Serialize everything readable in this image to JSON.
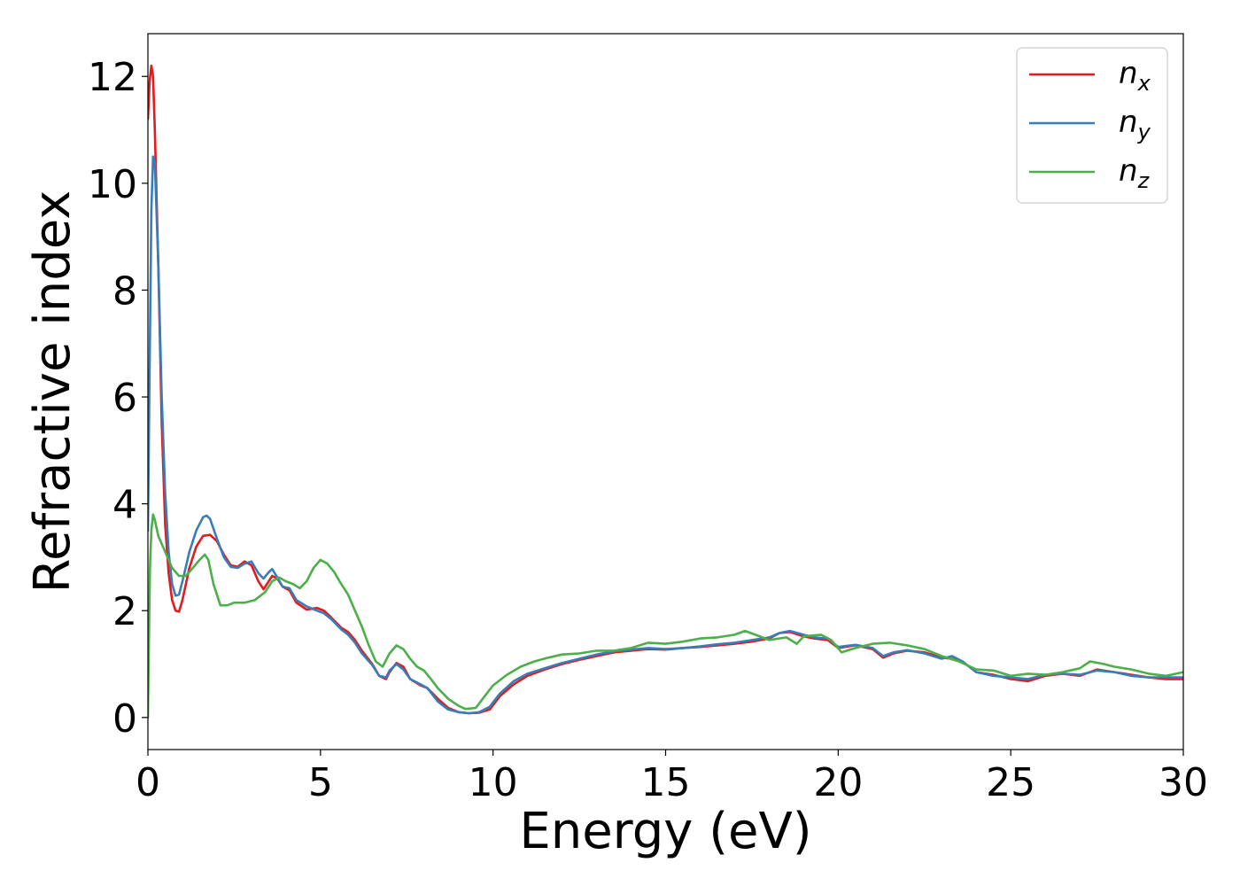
{
  "chart_data": {
    "type": "line",
    "xlabel": "Energy (eV)",
    "ylabel": "Refractive index",
    "xlim": [
      0,
      30
    ],
    "ylim": [
      -0.6,
      12.8
    ],
    "xticks": [
      "0",
      "5",
      "10",
      "15",
      "20",
      "25",
      "30"
    ],
    "yticks": [
      "0",
      "2",
      "4",
      "6",
      "8",
      "10",
      "12"
    ],
    "grid": false,
    "legend_position": "top-right",
    "series": [
      {
        "name": "n",
        "subscript": "x",
        "color": "#e41a1c",
        "points": [
          [
            0,
            11.2
          ],
          [
            0.05,
            11.9
          ],
          [
            0.1,
            12.2
          ],
          [
            0.15,
            12.0
          ],
          [
            0.2,
            11.0
          ],
          [
            0.3,
            8.5
          ],
          [
            0.4,
            5.5
          ],
          [
            0.5,
            3.6
          ],
          [
            0.6,
            2.7
          ],
          [
            0.7,
            2.2
          ],
          [
            0.8,
            2.0
          ],
          [
            0.9,
            1.98
          ],
          [
            1.0,
            2.2
          ],
          [
            1.2,
            2.8
          ],
          [
            1.4,
            3.2
          ],
          [
            1.6,
            3.4
          ],
          [
            1.8,
            3.42
          ],
          [
            2.0,
            3.3
          ],
          [
            2.2,
            3.05
          ],
          [
            2.4,
            2.85
          ],
          [
            2.6,
            2.82
          ],
          [
            2.8,
            2.92
          ],
          [
            3.0,
            2.85
          ],
          [
            3.2,
            2.55
          ],
          [
            3.35,
            2.4
          ],
          [
            3.5,
            2.55
          ],
          [
            3.6,
            2.65
          ],
          [
            3.75,
            2.6
          ],
          [
            3.9,
            2.45
          ],
          [
            4.1,
            2.38
          ],
          [
            4.3,
            2.15
          ],
          [
            4.6,
            2.02
          ],
          [
            4.9,
            2.05
          ],
          [
            5.1,
            2.0
          ],
          [
            5.3,
            1.88
          ],
          [
            5.6,
            1.68
          ],
          [
            5.8,
            1.6
          ],
          [
            6.0,
            1.45
          ],
          [
            6.2,
            1.25
          ],
          [
            6.5,
            1.0
          ],
          [
            6.7,
            0.78
          ],
          [
            6.9,
            0.72
          ],
          [
            7.0,
            0.85
          ],
          [
            7.2,
            1.02
          ],
          [
            7.4,
            0.95
          ],
          [
            7.6,
            0.72
          ],
          [
            7.9,
            0.6
          ],
          [
            8.1,
            0.55
          ],
          [
            8.4,
            0.35
          ],
          [
            8.7,
            0.18
          ],
          [
            9.0,
            0.1
          ],
          [
            9.3,
            0.08
          ],
          [
            9.6,
            0.09
          ],
          [
            9.9,
            0.15
          ],
          [
            10.2,
            0.4
          ],
          [
            10.6,
            0.62
          ],
          [
            11.0,
            0.78
          ],
          [
            11.5,
            0.9
          ],
          [
            12.0,
            1.0
          ],
          [
            12.5,
            1.08
          ],
          [
            13.0,
            1.15
          ],
          [
            13.5,
            1.22
          ],
          [
            14.0,
            1.25
          ],
          [
            14.5,
            1.28
          ],
          [
            15.0,
            1.27
          ],
          [
            15.5,
            1.3
          ],
          [
            16.0,
            1.32
          ],
          [
            16.5,
            1.35
          ],
          [
            17.0,
            1.38
          ],
          [
            17.5,
            1.42
          ],
          [
            18.0,
            1.48
          ],
          [
            18.3,
            1.58
          ],
          [
            18.6,
            1.6
          ],
          [
            19.0,
            1.52
          ],
          [
            19.3,
            1.48
          ],
          [
            19.7,
            1.45
          ],
          [
            20.0,
            1.3
          ],
          [
            20.5,
            1.35
          ],
          [
            21.0,
            1.28
          ],
          [
            21.3,
            1.12
          ],
          [
            21.6,
            1.2
          ],
          [
            22.0,
            1.25
          ],
          [
            22.5,
            1.22
          ],
          [
            23.0,
            1.12
          ],
          [
            23.3,
            1.1
          ],
          [
            23.6,
            1.05
          ],
          [
            24.0,
            0.85
          ],
          [
            24.5,
            0.8
          ],
          [
            25.0,
            0.72
          ],
          [
            25.5,
            0.68
          ],
          [
            26.0,
            0.78
          ],
          [
            26.5,
            0.82
          ],
          [
            27.0,
            0.78
          ],
          [
            27.5,
            0.9
          ],
          [
            28.0,
            0.85
          ],
          [
            28.5,
            0.8
          ],
          [
            29.0,
            0.75
          ],
          [
            29.5,
            0.72
          ],
          [
            30.0,
            0.72
          ]
        ]
      },
      {
        "name": "n",
        "subscript": "y",
        "color": "#377eb8",
        "points": [
          [
            0,
            3.5
          ],
          [
            0.05,
            6.5
          ],
          [
            0.1,
            9.5
          ],
          [
            0.15,
            10.5
          ],
          [
            0.2,
            10.4
          ],
          [
            0.3,
            8.5
          ],
          [
            0.4,
            6.0
          ],
          [
            0.5,
            4.2
          ],
          [
            0.6,
            3.1
          ],
          [
            0.7,
            2.5
          ],
          [
            0.8,
            2.28
          ],
          [
            0.9,
            2.3
          ],
          [
            1.0,
            2.55
          ],
          [
            1.2,
            3.1
          ],
          [
            1.4,
            3.5
          ],
          [
            1.6,
            3.75
          ],
          [
            1.7,
            3.78
          ],
          [
            1.8,
            3.72
          ],
          [
            2.0,
            3.35
          ],
          [
            2.2,
            3.0
          ],
          [
            2.4,
            2.82
          ],
          [
            2.6,
            2.8
          ],
          [
            2.8,
            2.88
          ],
          [
            3.0,
            2.92
          ],
          [
            3.2,
            2.7
          ],
          [
            3.35,
            2.6
          ],
          [
            3.5,
            2.72
          ],
          [
            3.6,
            2.78
          ],
          [
            3.75,
            2.62
          ],
          [
            3.9,
            2.45
          ],
          [
            4.1,
            2.42
          ],
          [
            4.3,
            2.2
          ],
          [
            4.6,
            2.08
          ],
          [
            4.9,
            2.0
          ],
          [
            5.1,
            1.95
          ],
          [
            5.3,
            1.85
          ],
          [
            5.6,
            1.65
          ],
          [
            5.8,
            1.55
          ],
          [
            6.0,
            1.4
          ],
          [
            6.2,
            1.2
          ],
          [
            6.5,
            0.98
          ],
          [
            6.7,
            0.78
          ],
          [
            6.9,
            0.75
          ],
          [
            7.0,
            0.88
          ],
          [
            7.2,
            1.0
          ],
          [
            7.4,
            0.9
          ],
          [
            7.6,
            0.72
          ],
          [
            7.9,
            0.62
          ],
          [
            8.1,
            0.55
          ],
          [
            8.4,
            0.3
          ],
          [
            8.7,
            0.15
          ],
          [
            9.0,
            0.1
          ],
          [
            9.3,
            0.08
          ],
          [
            9.6,
            0.1
          ],
          [
            9.9,
            0.2
          ],
          [
            10.2,
            0.45
          ],
          [
            10.6,
            0.68
          ],
          [
            11.0,
            0.82
          ],
          [
            11.5,
            0.92
          ],
          [
            12.0,
            1.02
          ],
          [
            12.5,
            1.1
          ],
          [
            13.0,
            1.18
          ],
          [
            13.5,
            1.24
          ],
          [
            14.0,
            1.27
          ],
          [
            14.5,
            1.3
          ],
          [
            15.0,
            1.28
          ],
          [
            15.5,
            1.3
          ],
          [
            16.0,
            1.33
          ],
          [
            16.5,
            1.37
          ],
          [
            17.0,
            1.4
          ],
          [
            17.5,
            1.45
          ],
          [
            18.0,
            1.5
          ],
          [
            18.3,
            1.58
          ],
          [
            18.6,
            1.62
          ],
          [
            19.0,
            1.55
          ],
          [
            19.3,
            1.5
          ],
          [
            19.7,
            1.48
          ],
          [
            20.0,
            1.32
          ],
          [
            20.5,
            1.36
          ],
          [
            21.0,
            1.3
          ],
          [
            21.3,
            1.15
          ],
          [
            21.6,
            1.22
          ],
          [
            22.0,
            1.26
          ],
          [
            22.5,
            1.2
          ],
          [
            23.0,
            1.1
          ],
          [
            23.3,
            1.15
          ],
          [
            23.6,
            1.05
          ],
          [
            24.0,
            0.85
          ],
          [
            24.5,
            0.78
          ],
          [
            25.0,
            0.75
          ],
          [
            25.5,
            0.72
          ],
          [
            26.0,
            0.8
          ],
          [
            26.5,
            0.82
          ],
          [
            27.0,
            0.8
          ],
          [
            27.5,
            0.88
          ],
          [
            28.0,
            0.85
          ],
          [
            28.5,
            0.78
          ],
          [
            29.0,
            0.75
          ],
          [
            29.5,
            0.75
          ],
          [
            30.0,
            0.75
          ]
        ]
      },
      {
        "name": "n",
        "subscript": "z",
        "color": "#4daf4a",
        "points": [
          [
            0,
            0.0
          ],
          [
            0.03,
            1.5
          ],
          [
            0.06,
            2.8
          ],
          [
            0.1,
            3.5
          ],
          [
            0.15,
            3.8
          ],
          [
            0.2,
            3.7
          ],
          [
            0.3,
            3.4
          ],
          [
            0.5,
            3.1
          ],
          [
            0.7,
            2.8
          ],
          [
            0.9,
            2.65
          ],
          [
            1.1,
            2.65
          ],
          [
            1.3,
            2.8
          ],
          [
            1.5,
            2.95
          ],
          [
            1.65,
            3.05
          ],
          [
            1.75,
            2.95
          ],
          [
            1.9,
            2.5
          ],
          [
            2.1,
            2.1
          ],
          [
            2.3,
            2.1
          ],
          [
            2.5,
            2.15
          ],
          [
            2.8,
            2.15
          ],
          [
            3.1,
            2.2
          ],
          [
            3.4,
            2.35
          ],
          [
            3.6,
            2.55
          ],
          [
            3.8,
            2.62
          ],
          [
            4.0,
            2.55
          ],
          [
            4.2,
            2.5
          ],
          [
            4.4,
            2.42
          ],
          [
            4.6,
            2.55
          ],
          [
            4.8,
            2.8
          ],
          [
            5.0,
            2.95
          ],
          [
            5.2,
            2.88
          ],
          [
            5.4,
            2.72
          ],
          [
            5.6,
            2.5
          ],
          [
            5.8,
            2.3
          ],
          [
            6.0,
            2.0
          ],
          [
            6.2,
            1.7
          ],
          [
            6.4,
            1.35
          ],
          [
            6.6,
            1.05
          ],
          [
            6.8,
            0.95
          ],
          [
            7.0,
            1.2
          ],
          [
            7.2,
            1.35
          ],
          [
            7.4,
            1.28
          ],
          [
            7.6,
            1.1
          ],
          [
            7.8,
            0.95
          ],
          [
            8.0,
            0.88
          ],
          [
            8.2,
            0.72
          ],
          [
            8.4,
            0.55
          ],
          [
            8.7,
            0.35
          ],
          [
            9.0,
            0.22
          ],
          [
            9.2,
            0.16
          ],
          [
            9.5,
            0.18
          ],
          [
            9.7,
            0.35
          ],
          [
            10.0,
            0.6
          ],
          [
            10.4,
            0.8
          ],
          [
            10.8,
            0.95
          ],
          [
            11.2,
            1.05
          ],
          [
            11.6,
            1.12
          ],
          [
            12.0,
            1.18
          ],
          [
            12.5,
            1.2
          ],
          [
            13.0,
            1.25
          ],
          [
            13.5,
            1.25
          ],
          [
            14.0,
            1.3
          ],
          [
            14.5,
            1.4
          ],
          [
            15.0,
            1.38
          ],
          [
            15.5,
            1.42
          ],
          [
            16.0,
            1.48
          ],
          [
            16.5,
            1.5
          ],
          [
            17.0,
            1.55
          ],
          [
            17.3,
            1.62
          ],
          [
            17.6,
            1.55
          ],
          [
            18.0,
            1.45
          ],
          [
            18.5,
            1.5
          ],
          [
            18.8,
            1.38
          ],
          [
            19.0,
            1.52
          ],
          [
            19.5,
            1.55
          ],
          [
            19.8,
            1.45
          ],
          [
            20.1,
            1.22
          ],
          [
            20.5,
            1.3
          ],
          [
            21.0,
            1.38
          ],
          [
            21.5,
            1.4
          ],
          [
            22.0,
            1.35
          ],
          [
            22.5,
            1.28
          ],
          [
            23.0,
            1.15
          ],
          [
            23.5,
            1.05
          ],
          [
            24.0,
            0.9
          ],
          [
            24.5,
            0.88
          ],
          [
            25.0,
            0.78
          ],
          [
            25.5,
            0.82
          ],
          [
            26.0,
            0.8
          ],
          [
            26.5,
            0.85
          ],
          [
            27.0,
            0.92
          ],
          [
            27.3,
            1.05
          ],
          [
            27.7,
            1.0
          ],
          [
            28.0,
            0.95
          ],
          [
            28.5,
            0.9
          ],
          [
            29.0,
            0.82
          ],
          [
            29.5,
            0.78
          ],
          [
            30.0,
            0.85
          ]
        ]
      }
    ]
  }
}
